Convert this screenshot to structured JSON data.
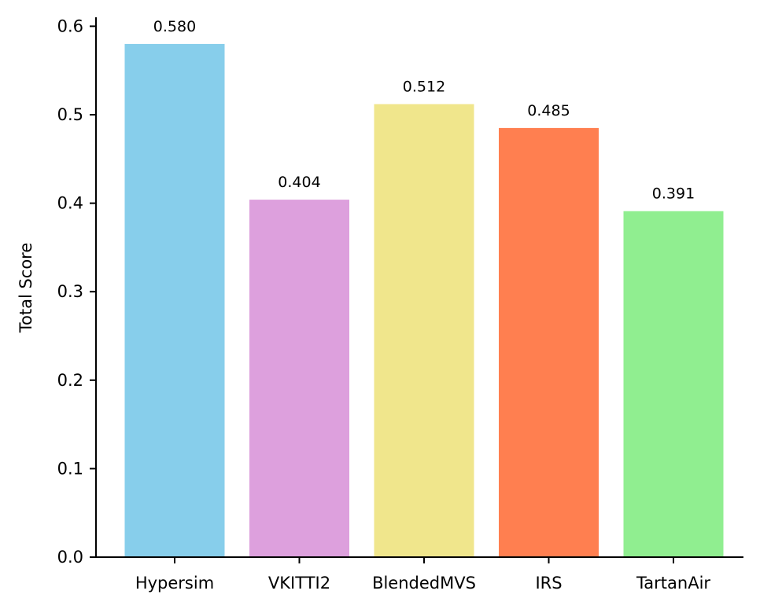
{
  "chart_data": {
    "type": "bar",
    "title": "",
    "xlabel": "",
    "ylabel": "Total  Score",
    "categories": [
      "Hypersim",
      "VKITTI2",
      "BlendedMVS",
      "IRS",
      "TartanAir"
    ],
    "values": [
      0.58,
      0.404,
      0.512,
      0.485,
      0.391
    ],
    "value_labels": [
      "0.580",
      "0.404",
      "0.512",
      "0.485",
      "0.391"
    ],
    "colors": [
      "#87CEEB",
      "#DDA0DD",
      "#F0E68C",
      "#FF7F50",
      "#90EE90"
    ],
    "ylim": [
      0,
      0.61
    ],
    "yticks": [
      0.0,
      0.1,
      0.2,
      0.3,
      0.4,
      0.5,
      0.6
    ],
    "ytick_labels": [
      "0.0",
      "0.1",
      "0.2",
      "0.3",
      "0.4",
      "0.5",
      "0.6"
    ],
    "grid": false,
    "legend": "none",
    "spines": "left-bottom"
  }
}
